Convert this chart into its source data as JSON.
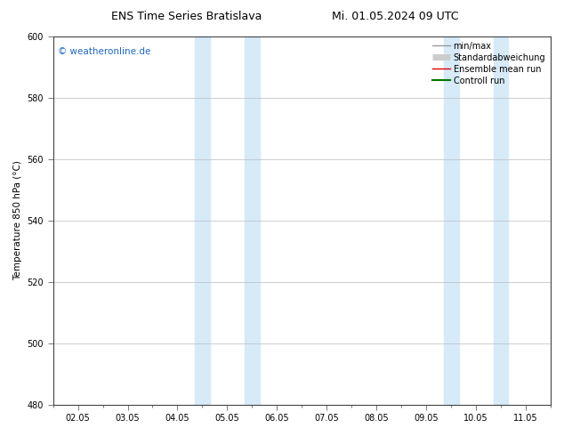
{
  "title_left": "ENS Time Series Bratislava",
  "title_right": "Mi. 01.05.2024 09 UTC",
  "ylabel": "Temperature 850 hPa (°C)",
  "ylim": [
    480,
    600
  ],
  "yticks": [
    480,
    500,
    520,
    540,
    560,
    580,
    600
  ],
  "x_tick_labels": [
    "02.05",
    "03.05",
    "04.05",
    "05.05",
    "06.05",
    "07.05",
    "08.05",
    "09.05",
    "10.05",
    "11.05"
  ],
  "x_tick_positions": [
    0,
    1,
    2,
    3,
    4,
    5,
    6,
    7,
    8,
    9
  ],
  "xlim": [
    -0.5,
    9.5
  ],
  "shade_bands": [
    {
      "xmin": 2.35,
      "xmax": 2.65
    },
    {
      "xmin": 3.35,
      "xmax": 3.65
    },
    {
      "xmin": 7.35,
      "xmax": 7.65
    },
    {
      "xmin": 8.35,
      "xmax": 8.65
    }
  ],
  "shade_color": "#d6eaf8",
  "watermark": "© weatheronline.de",
  "watermark_color": "#2266bb",
  "watermark_fontsize": 7.5,
  "legend_items": [
    {
      "label": "min/max",
      "color": "#999999",
      "lw": 1.0,
      "ls": "-",
      "type": "line"
    },
    {
      "label": "Standardabweichung",
      "color": "#cccccc",
      "lw": 5,
      "ls": "-",
      "type": "band"
    },
    {
      "label": "Ensemble mean run",
      "color": "#dd0000",
      "lw": 1.0,
      "ls": "-",
      "type": "line"
    },
    {
      "label": "Controll run",
      "color": "#007700",
      "lw": 1.5,
      "ls": "-",
      "type": "line"
    }
  ],
  "bg_color": "#ffffff",
  "grid_color": "#bbbbbb",
  "title_fontsize": 9,
  "ylabel_fontsize": 7.5,
  "tick_fontsize": 7,
  "legend_fontsize": 7
}
